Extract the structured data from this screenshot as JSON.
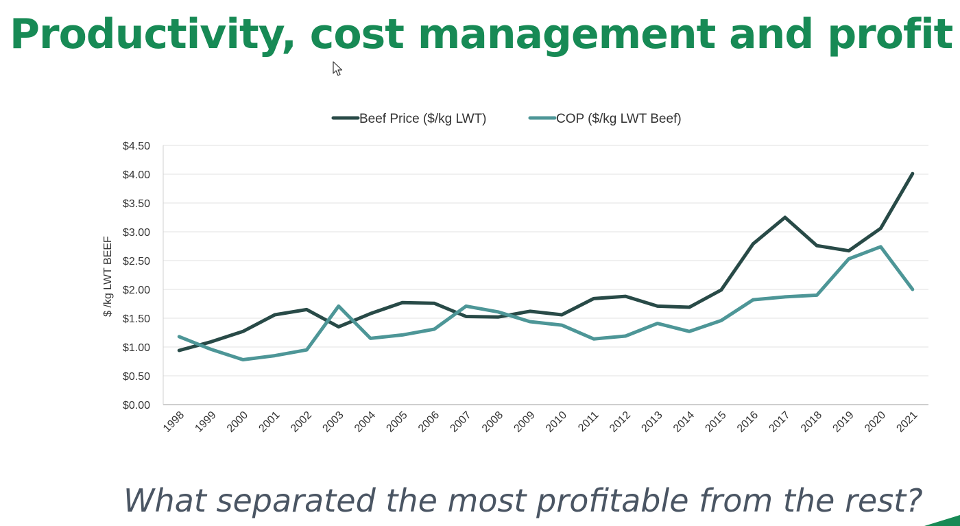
{
  "slide": {
    "title": "Productivity, cost management and profit",
    "question": "What separated the most profitable from the rest?",
    "title_color": "#178a55",
    "question_color": "#4a5563",
    "accent_color": "#178a55"
  },
  "icons": {
    "cursor": "mouse-pointer-arrow"
  },
  "chart_data": {
    "type": "line",
    "title": "",
    "xlabel": "",
    "ylabel": "$ /kg LWT BEEF",
    "categories": [
      "1998",
      "1999",
      "2000",
      "2001",
      "2002",
      "2003",
      "2004",
      "2005",
      "2006",
      "2007",
      "2008",
      "2009",
      "2010",
      "2011",
      "2012",
      "2013",
      "2014",
      "2015",
      "2016",
      "2017",
      "2018",
      "2019",
      "2020",
      "2021"
    ],
    "ylim": [
      0,
      4.5
    ],
    "yticks": [
      0,
      0.5,
      1.0,
      1.5,
      2.0,
      2.5,
      3.0,
      3.5,
      4.0,
      4.5
    ],
    "ytick_labels": [
      "$0.00",
      "$0.50",
      "$1.00",
      "$1.50",
      "$2.00",
      "$2.50",
      "$3.00",
      "$3.50",
      "$4.00",
      "$4.50"
    ],
    "grid": true,
    "legend_position": "top-center",
    "series": [
      {
        "name": "Beef Price ($/kg LWT)",
        "color": "#284a47",
        "values": [
          0.94,
          1.09,
          1.27,
          1.56,
          1.65,
          1.35,
          1.58,
          1.77,
          1.76,
          1.53,
          1.52,
          1.62,
          1.56,
          1.84,
          1.88,
          1.71,
          1.69,
          1.99,
          2.79,
          3.25,
          2.76,
          2.67,
          3.06,
          4.01
        ]
      },
      {
        "name": "COP ($/kg LWT Beef)",
        "color": "#4d9697",
        "values": [
          1.18,
          0.96,
          0.78,
          0.85,
          0.95,
          1.71,
          1.15,
          1.21,
          1.31,
          1.71,
          1.61,
          1.44,
          1.38,
          1.14,
          1.19,
          1.41,
          1.27,
          1.46,
          1.82,
          1.87,
          1.9,
          2.53,
          2.74,
          2.0
        ]
      }
    ]
  }
}
